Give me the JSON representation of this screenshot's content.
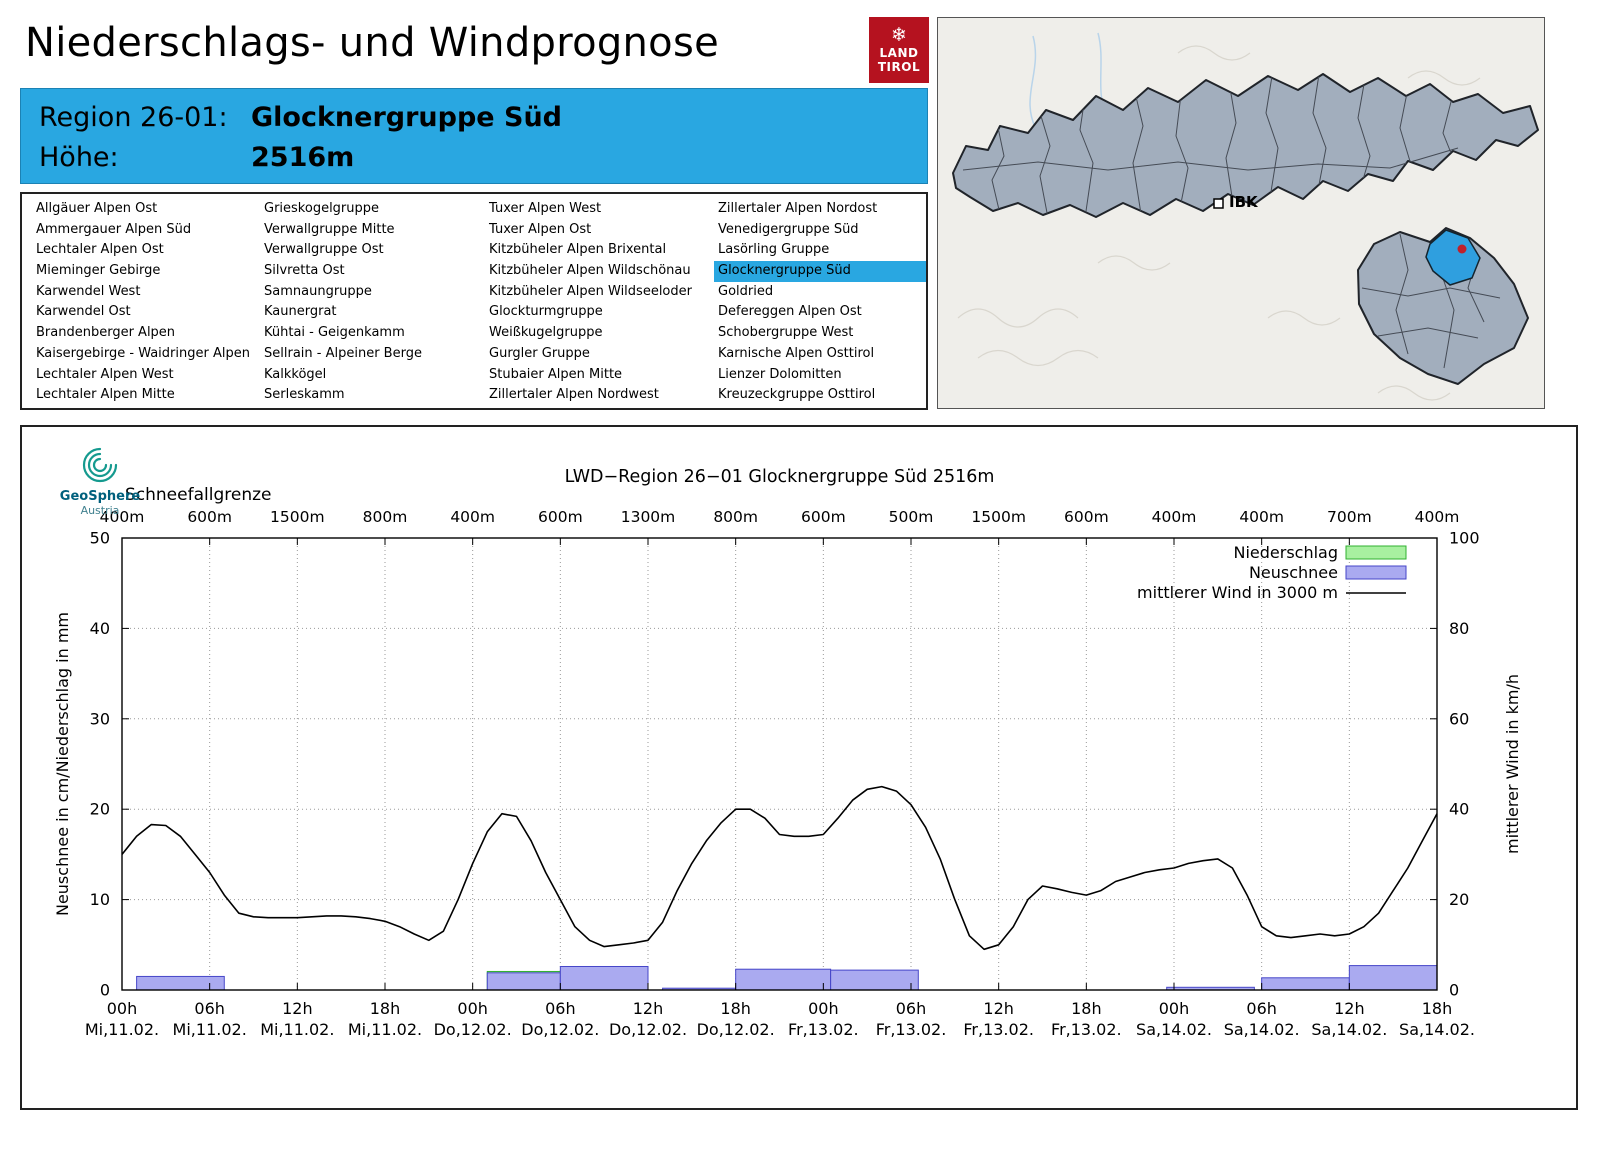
{
  "header": {
    "title": "Niederschlags- und Windprognose"
  },
  "logo": {
    "snowflake": "❄",
    "line1": "LAND",
    "line2": "TIROL"
  },
  "map": {
    "ibk_label": "IBK"
  },
  "region_header": {
    "region_label": "Region 26-01:",
    "region_value": "Glocknergruppe Süd",
    "altitude_label": "Höhe:",
    "altitude_value": "2516m"
  },
  "region_list": {
    "selected": "Glocknergruppe Süd",
    "columns": [
      [
        "Allgäuer Alpen Ost",
        "Ammergauer Alpen Süd",
        "Lechtaler Alpen Ost",
        "Mieminger Gebirge",
        "Karwendel West",
        "Karwendel Ost",
        "Brandenberger Alpen",
        "Kaisergebirge - Waidringer Alpen",
        "Lechtaler Alpen West",
        "Lechtaler Alpen Mitte"
      ],
      [
        "Grieskogelgruppe",
        "Verwallgruppe Mitte",
        "Verwallgruppe Ost",
        "Silvretta Ost",
        "Samnaungruppe",
        "Kaunergrat",
        "Kühtai - Geigenkamm",
        "Sellrain - Alpeiner Berge",
        "Kalkkögel",
        "Serleskamm"
      ],
      [
        "Tuxer Alpen West",
        "Tuxer Alpen Ost",
        "Kitzbüheler Alpen Brixental",
        "Kitzbüheler Alpen Wildschönau",
        "Kitzbüheler Alpen Wildseeloder",
        "Glockturmgruppe",
        "Weißkugelgruppe",
        "Gurgler Gruppe",
        "Stubaier Alpen Mitte",
        "Zillertaler Alpen Nordwest"
      ],
      [
        "Zillertaler Alpen Nordost",
        "Venedigergruppe Süd",
        "Lasörling Gruppe",
        "Glocknergruppe Süd",
        "Goldried",
        "Defereggen Alpen Ost",
        "Schobergruppe West",
        "Karnische Alpen Osttirol",
        "Lienzer Dolomitten",
        "Kreuzeckgruppe Osttirol"
      ]
    ]
  },
  "geosphere": {
    "name": "GeoSphere",
    "subtitle": "Austria"
  },
  "colors": {
    "accent_blue": "#29a7e1",
    "logo_red": "#b5121f"
  },
  "chart_data": {
    "type": "bar",
    "title": "LWD−Region 26−01 Glocknergruppe Süd 2516m",
    "top_axis_label": "Schneefallgrenze",
    "top_axis_values": [
      "400m",
      "600m",
      "1500m",
      "800m",
      "400m",
      "600m",
      "1300m",
      "800m",
      "600m",
      "500m",
      "1500m",
      "600m",
      "400m",
      "400m",
      "700m",
      "400m"
    ],
    "x_ticks_hours": [
      0,
      6,
      12,
      18,
      24,
      30,
      36,
      42,
      48,
      54,
      60,
      66,
      72,
      78,
      84,
      90
    ],
    "x_tick_labels": [
      [
        "00h",
        "Mi,11.02."
      ],
      [
        "06h",
        "Mi,11.02."
      ],
      [
        "12h",
        "Mi,11.02."
      ],
      [
        "18h",
        "Mi,11.02."
      ],
      [
        "00h",
        "Do,12.02."
      ],
      [
        "06h",
        "Do,12.02."
      ],
      [
        "12h",
        "Do,12.02."
      ],
      [
        "18h",
        "Do,12.02."
      ],
      [
        "00h",
        "Fr,13.02."
      ],
      [
        "06h",
        "Fr,13.02."
      ],
      [
        "12h",
        "Fr,13.02."
      ],
      [
        "18h",
        "Fr,13.02."
      ],
      [
        "00h",
        "Sa,14.02."
      ],
      [
        "06h",
        "Sa,14.02."
      ],
      [
        "12h",
        "Sa,14.02."
      ],
      [
        "18h",
        "Sa,14.02."
      ]
    ],
    "ylabel_left": "Neuschnee in cm/Niederschlag in mm",
    "ylabel_right": "mittlerer Wind in km/h",
    "ylim_left": [
      0,
      50
    ],
    "ylim_right": [
      0,
      100
    ],
    "grid": true,
    "legend_position": "top-right",
    "legend": [
      {
        "label": "Niederschlag",
        "type": "bar",
        "fill": "#a8f0a0",
        "border": "#30b030"
      },
      {
        "label": "Neuschnee",
        "type": "bar",
        "fill": "#aaaaf0",
        "border": "#4646c8"
      },
      {
        "label": "mittlerer Wind in 3000 m",
        "type": "line",
        "color": "#000000"
      }
    ],
    "colors": {
      "niederschlag_fill": "#a8f0a0",
      "niederschlag_border": "#30b030",
      "neuschnee_fill": "#aaaaf0",
      "neuschnee_border": "#4646c8",
      "wind": "#000000"
    },
    "niederschlag_bars": [
      {
        "start": 25,
        "end": 30,
        "value": 2.05
      }
    ],
    "neuschnee_bars": [
      {
        "start": 1,
        "end": 7,
        "value": 1.5
      },
      {
        "start": 25,
        "end": 30,
        "value": 1.9
      },
      {
        "start": 30,
        "end": 36,
        "value": 2.6
      },
      {
        "start": 37,
        "end": 42,
        "value": 0.2
      },
      {
        "start": 42,
        "end": 48.5,
        "value": 2.3
      },
      {
        "start": 48.5,
        "end": 54.5,
        "value": 2.2
      },
      {
        "start": 71.5,
        "end": 77.5,
        "value": 0.3
      },
      {
        "start": 78,
        "end": 84,
        "value": 1.35
      },
      {
        "start": 84,
        "end": 90,
        "value": 2.7
      }
    ],
    "wind_line": {
      "x_step_hours": 1,
      "y_kmh": [
        30,
        34,
        36.6,
        36.4,
        34,
        30,
        26,
        21,
        17,
        16.2,
        16,
        16,
        16,
        16.2,
        16.4,
        16.4,
        16.2,
        15.8,
        15.2,
        14,
        12.4,
        11,
        13,
        20,
        28,
        35,
        39,
        38.4,
        33,
        26,
        20,
        14,
        11,
        9.6,
        10,
        10.4,
        11,
        15,
        22,
        28,
        33,
        37,
        40,
        40,
        38,
        34.4,
        34,
        34,
        34.4,
        38,
        42,
        44.4,
        45,
        44,
        41,
        36,
        29,
        20,
        12,
        9,
        10,
        14,
        20,
        23,
        22.4,
        21.6,
        21,
        22,
        24,
        25,
        26,
        26.6,
        27,
        28,
        28.6,
        29,
        27,
        21,
        14,
        12,
        11.6,
        12,
        12.4,
        12,
        12.4,
        14,
        17,
        22,
        27,
        33,
        39
      ]
    }
  }
}
